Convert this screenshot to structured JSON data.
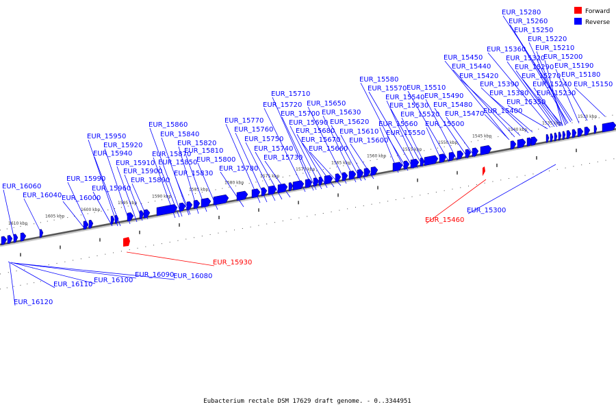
{
  "legend": {
    "forward_label": "Forward",
    "reverse_label": "Reverse",
    "forward_color": "#ff0000",
    "reverse_color": "#0000ff"
  },
  "caption": "Eubacterium rectale DSM 17629 draft genome. - 0..3344951",
  "scale_labels": [
    "1610 kbp",
    "1605 kbp",
    "1600 kbp",
    "1595 kbp",
    "1590 kbp",
    "1585 kbp",
    "1580 kbp",
    "1575 kbp",
    "1570 kbp",
    "1565 kbp",
    "1560 kbp",
    "1555 kbp",
    "1550 kbp",
    "1545 kbp",
    "1540 kbp",
    "1535 kbp",
    "1530 kbp"
  ],
  "forward_genes": [
    "EUR_15930",
    "EUR_15460"
  ],
  "reverse_genes": [
    "EUR_15280",
    "EUR_15260",
    "EUR_15250",
    "EUR_15220",
    "EUR_15210",
    "EUR_15200",
    "EUR_15190",
    "EUR_15180",
    "EUR_15150",
    "EUR_15360",
    "EUR_15320",
    "EUR_15290",
    "EUR_15270",
    "EUR_15240",
    "EUR_15230",
    "EUR_15450",
    "EUR_15440",
    "EUR_15420",
    "EUR_15390",
    "EUR_15380",
    "EUR_15350",
    "EUR_15400",
    "EUR_15580",
    "EUR_15570",
    "EUR_15510",
    "EUR_15540",
    "EUR_15490",
    "EUR_15530",
    "EUR_15480",
    "EUR_15520",
    "EUR_15470",
    "EUR_15560",
    "EUR_15500",
    "EUR_15550",
    "EUR_15710",
    "EUR_15650",
    "EUR_15720",
    "EUR_15630",
    "EUR_15700",
    "EUR_15690",
    "EUR_15620",
    "EUR_15680",
    "EUR_15610",
    "EUR_15670",
    "EUR_15600",
    "EUR_15660",
    "EUR_15770",
    "EUR_15760",
    "EUR_15750",
    "EUR_15740",
    "EUR_15730",
    "EUR_15780",
    "EUR_15860",
    "EUR_15840",
    "EUR_15820",
    "EUR_15810",
    "EUR_15870",
    "EUR_15850",
    "EUR_15800",
    "EUR_15830",
    "EUR_15950",
    "EUR_15920",
    "EUR_15940",
    "EUR_15910",
    "EUR_15900",
    "EUR_15890",
    "EUR_15960",
    "EUR_15990",
    "EUR_16060",
    "EUR_16040",
    "EUR_16000",
    "EUR_15300",
    "EUR_16090",
    "EUR_16080",
    "EUR_16100",
    "EUR_16110",
    "EUR_16120"
  ]
}
